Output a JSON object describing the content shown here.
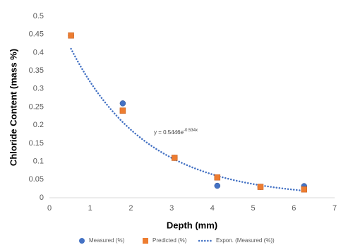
{
  "chart_data": {
    "type": "scatter",
    "x_label": "Depth (mm)",
    "y_label": "Chloride Content (mass %)",
    "xlim": [
      0,
      7
    ],
    "xticks": [
      0,
      1,
      2,
      3,
      4,
      5,
      6,
      7
    ],
    "ylim": [
      0,
      0.5
    ],
    "yticks": [
      0,
      0.05,
      0.1,
      0.15,
      0.2,
      0.25,
      0.3,
      0.35,
      0.4,
      0.45,
      0.5
    ],
    "grid": false,
    "legend": "bottom",
    "series": [
      {
        "name": "Measured (%)",
        "color": "#4472c4",
        "marker": "circle",
        "x": [
          0.53,
          1.8,
          3.07,
          4.12,
          5.18,
          6.25
        ],
        "values": [
          0.447,
          0.26,
          0.11,
          0.033,
          0.03,
          0.032
        ]
      },
      {
        "name": "Predicted (%)",
        "color": "#ed7d31",
        "marker": "square",
        "x": [
          0.53,
          1.8,
          3.07,
          4.12,
          5.18,
          6.25
        ],
        "values": [
          0.447,
          0.24,
          0.11,
          0.056,
          0.03,
          0.023
        ]
      }
    ],
    "trendline": {
      "name": "Expon. (Measured (%))",
      "color": "#4472c4",
      "kind": "exponential",
      "a": 0.5446,
      "b": -0.534,
      "equation": {
        "base": "y = 0.5446e",
        "exponent": "-0.534x"
      }
    }
  }
}
